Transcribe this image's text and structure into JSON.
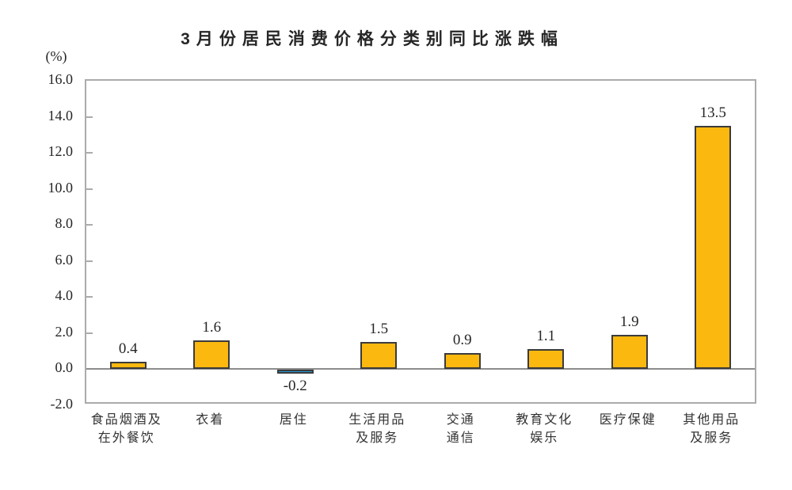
{
  "chart_data": {
    "type": "bar",
    "title": "3月份居民消费价格分类别同比涨跌幅",
    "unit_label": "(%)",
    "categories": [
      "食品烟酒及在外餐饮",
      "衣着",
      "居住",
      "生活用品及服务",
      "交通通信",
      "教育文化娱乐",
      "医疗保健",
      "其他用品及服务"
    ],
    "category_lines": [
      [
        "食品烟酒及",
        "在外餐饮"
      ],
      [
        "衣着"
      ],
      [
        "居住"
      ],
      [
        "生活用品",
        "及服务"
      ],
      [
        "交通",
        "通信"
      ],
      [
        "教育文化",
        "娱乐"
      ],
      [
        "医疗保健"
      ],
      [
        "其他用品",
        "及服务"
      ]
    ],
    "values": [
      0.4,
      1.6,
      -0.2,
      1.5,
      0.9,
      1.1,
      1.9,
      13.5
    ],
    "value_labels": [
      "0.4",
      "1.6",
      "-0.2",
      "1.5",
      "0.9",
      "1.1",
      "1.9",
      "13.5"
    ],
    "ylim": [
      -2.0,
      16.0
    ],
    "ytick_step": 2.0,
    "yticks": [
      16.0,
      14.0,
      12.0,
      10.0,
      8.0,
      6.0,
      4.0,
      2.0,
      0.0,
      -2.0
    ],
    "grid": false,
    "legend": false,
    "colors": {
      "positive_bar": "#FBB80F",
      "negative_bar": "#1F96D2",
      "bar_border": "#3B3B3B",
      "axis_border": "#ABABAB",
      "zero_line": "#8C8C8C",
      "text": "#262626"
    }
  }
}
